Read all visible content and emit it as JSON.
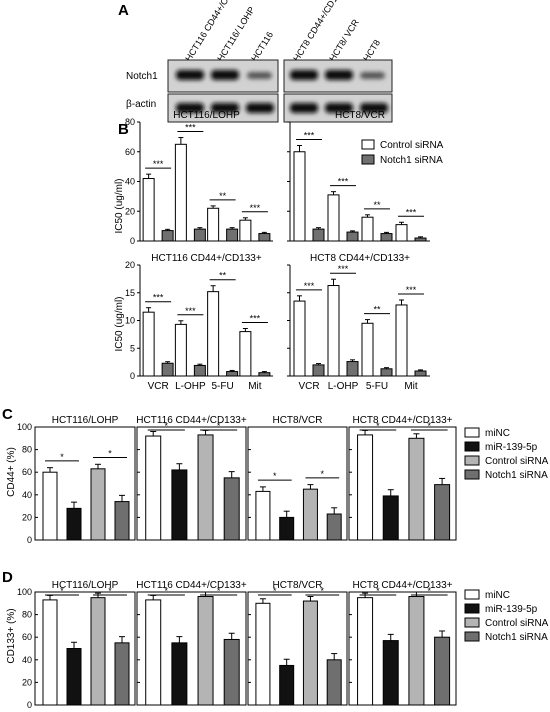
{
  "panels": {
    "A": "A",
    "B": "B",
    "C": "C",
    "D": "D"
  },
  "blot": {
    "lanes_left": [
      "HCT116 CD44+/CD133+",
      "HCT116/ LOHP",
      "HCT116"
    ],
    "lanes_right": [
      "HCT8 CD44+/CD133+",
      "HCT8/ VCR",
      "HCT8"
    ],
    "row_labels": [
      "Notch1",
      "β-actin"
    ]
  },
  "colors": {
    "white": "#ffffff",
    "black": "#111111",
    "lightgray": "#b4b4b4",
    "darkgray": "#6f6f6f",
    "gray_b": "#707070"
  },
  "chart_data": [
    {
      "panel": "B",
      "type": "bar",
      "title": "HCT116/LOHP",
      "categories": [
        "VCR",
        "L-OHP",
        "5-FU",
        "Mit"
      ],
      "ylabel": "IC50 (ug/ml)",
      "ylim": [
        0,
        80
      ],
      "yticks": [
        0,
        20,
        40,
        60,
        80
      ],
      "series": [
        {
          "name": "Control siRNA",
          "values": [
            42,
            65,
            22,
            14
          ]
        },
        {
          "name": "Notch1 siRNA",
          "values": [
            7,
            8,
            8,
            5
          ]
        }
      ],
      "significance": [
        "***",
        "***",
        "**",
        "***"
      ]
    },
    {
      "panel": "B",
      "type": "bar",
      "title": "HCT8/VCR",
      "categories": [
        "VCR",
        "L-OHP",
        "5-FU",
        "Mit"
      ],
      "ylim": [
        0,
        80
      ],
      "series": [
        {
          "name": "Control siRNA",
          "values": [
            60,
            31,
            16,
            11
          ]
        },
        {
          "name": "Notch1 siRNA",
          "values": [
            8,
            6,
            5,
            2
          ]
        }
      ],
      "significance": [
        "***",
        "***",
        "**",
        "***"
      ]
    },
    {
      "panel": "B",
      "type": "bar",
      "title": "HCT116 CD44+/CD133+",
      "categories": [
        "VCR",
        "L-OHP",
        "5-FU",
        "Mit"
      ],
      "ylabel": "IC50 (ug/ml)",
      "ylim": [
        0,
        20
      ],
      "yticks": [
        0,
        5,
        10,
        15,
        20
      ],
      "series": [
        {
          "name": "Control siRNA",
          "values": [
            11.5,
            9.3,
            15.2,
            8.0
          ]
        },
        {
          "name": "Notch1 siRNA",
          "values": [
            2.3,
            1.9,
            0.8,
            0.6
          ]
        }
      ],
      "significance": [
        "***",
        "***",
        "**",
        "***"
      ]
    },
    {
      "panel": "B",
      "type": "bar",
      "title": "HCT8 CD44+/CD133+",
      "categories": [
        "VCR",
        "L-OHP",
        "5-FU",
        "Mit"
      ],
      "ylim": [
        0,
        20
      ],
      "series": [
        {
          "name": "Control siRNA",
          "values": [
            13.5,
            16.3,
            9.5,
            12.8
          ]
        },
        {
          "name": "Notch1 siRNA",
          "values": [
            2.0,
            2.6,
            1.3,
            0.9
          ]
        }
      ],
      "significance": [
        "***",
        "***",
        "**",
        "***"
      ]
    },
    {
      "panel": "C",
      "type": "bar",
      "title": "HCT116/LOHP",
      "ylabel": "CD44+ (%)",
      "ylim": [
        0,
        100
      ],
      "yticks": [
        0,
        20,
        40,
        60,
        80,
        100
      ],
      "series": [
        {
          "name": "miNC",
          "values": [
            60
          ]
        },
        {
          "name": "miR-139-5p",
          "values": [
            28
          ]
        },
        {
          "name": "Control siRNA",
          "values": [
            63
          ]
        },
        {
          "name": "Notch1 siRNA",
          "values": [
            34
          ]
        }
      ],
      "significance": [
        "*",
        "*"
      ]
    },
    {
      "panel": "C",
      "type": "bar",
      "title": "HCT116 CD44+/CD133+",
      "ylim": [
        0,
        100
      ],
      "series": [
        {
          "name": "miNC",
          "values": [
            92
          ]
        },
        {
          "name": "miR-139-5p",
          "values": [
            62
          ]
        },
        {
          "name": "Control siRNA",
          "values": [
            93
          ]
        },
        {
          "name": "Notch1 siRNA",
          "values": [
            55
          ]
        }
      ],
      "significance": [
        "*",
        "*"
      ]
    },
    {
      "panel": "C",
      "type": "bar",
      "title": "HCT8/VCR",
      "ylim": [
        0,
        100
      ],
      "series": [
        {
          "name": "miNC",
          "values": [
            43
          ]
        },
        {
          "name": "miR-139-5p",
          "values": [
            20
          ]
        },
        {
          "name": "Control siRNA",
          "values": [
            45
          ]
        },
        {
          "name": "Notch1 siRNA",
          "values": [
            23
          ]
        }
      ],
      "significance": [
        "*",
        "*"
      ]
    },
    {
      "panel": "C",
      "type": "bar",
      "title": "HCT8 CD44+/CD133+",
      "ylim": [
        0,
        100
      ],
      "series": [
        {
          "name": "miNC",
          "values": [
            93
          ]
        },
        {
          "name": "miR-139-5p",
          "values": [
            39
          ]
        },
        {
          "name": "Control siRNA",
          "values": [
            90
          ]
        },
        {
          "name": "Notch1 siRNA",
          "values": [
            49
          ]
        }
      ],
      "significance": [
        "*",
        "*"
      ]
    },
    {
      "panel": "D",
      "type": "bar",
      "title": "HCT116/LOHP",
      "ylabel": "CD133+ (%)",
      "ylim": [
        0,
        100
      ],
      "yticks": [
        0,
        20,
        40,
        60,
        80,
        100
      ],
      "series": [
        {
          "name": "miNC",
          "values": [
            93
          ]
        },
        {
          "name": "miR-139-5p",
          "values": [
            50
          ]
        },
        {
          "name": "Control siRNA",
          "values": [
            95
          ]
        },
        {
          "name": "Notch1 siRNA",
          "values": [
            55
          ]
        }
      ],
      "significance": [
        "*",
        "*"
      ]
    },
    {
      "panel": "D",
      "type": "bar",
      "title": "HCT116 CD44+/CD133+",
      "ylim": [
        0,
        100
      ],
      "series": [
        {
          "name": "miNC",
          "values": [
            93
          ]
        },
        {
          "name": "miR-139-5p",
          "values": [
            55
          ]
        },
        {
          "name": "Control siRNA",
          "values": [
            96
          ]
        },
        {
          "name": "Notch1 siRNA",
          "values": [
            58
          ]
        }
      ],
      "significance": [
        "*",
        "*"
      ]
    },
    {
      "panel": "D",
      "type": "bar",
      "title": "HCT8/VCR",
      "ylim": [
        0,
        100
      ],
      "series": [
        {
          "name": "miNC",
          "values": [
            90
          ]
        },
        {
          "name": "miR-139-5p",
          "values": [
            35
          ]
        },
        {
          "name": "Control siRNA",
          "values": [
            92
          ]
        },
        {
          "name": "Notch1 siRNA",
          "values": [
            40
          ]
        }
      ],
      "significance": [
        "*",
        "*"
      ]
    },
    {
      "panel": "D",
      "type": "bar",
      "title": "HCT8 CD44+/CD133+",
      "ylim": [
        0,
        100
      ],
      "series": [
        {
          "name": "miNC",
          "values": [
            95
          ]
        },
        {
          "name": "miR-139-5p",
          "values": [
            57
          ]
        },
        {
          "name": "Control siRNA",
          "values": [
            96
          ]
        },
        {
          "name": "Notch1 siRNA",
          "values": [
            60
          ]
        }
      ],
      "significance": [
        "*",
        "*"
      ]
    }
  ],
  "legend_b": [
    "Control siRNA",
    "Notch1 siRNA"
  ],
  "legend_cd": [
    "miNC",
    "miR-139-5p",
    "Control siRNA",
    "Notch1 siRNA"
  ]
}
